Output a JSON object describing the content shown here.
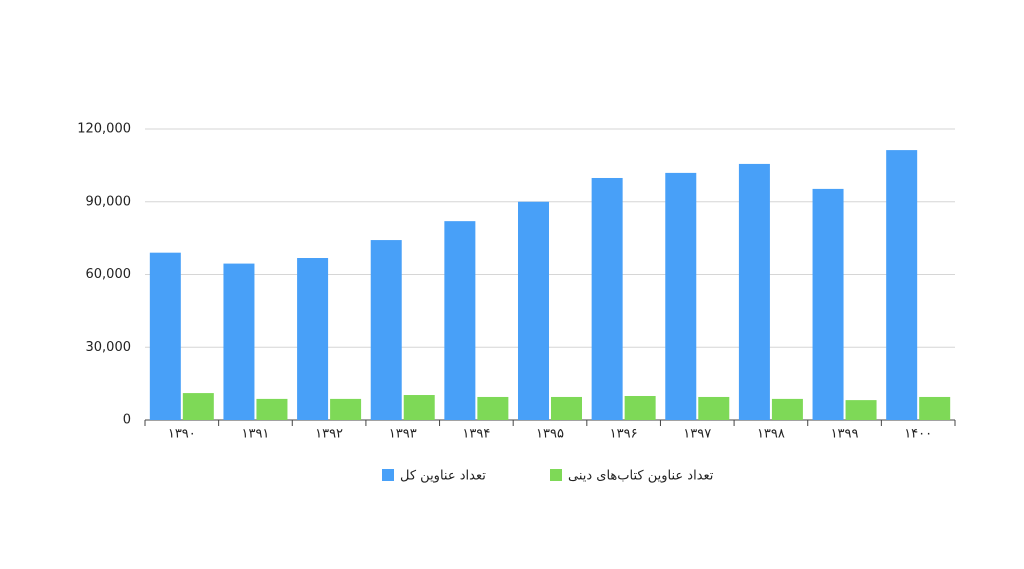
{
  "chart_data": {
    "type": "bar",
    "categories": [
      "۱۳۹۰",
      "۱۳۹۱",
      "۱۳۹۲",
      "۱۳۹۳",
      "۱۳۹۴",
      "۱۳۹۵",
      "۱۳۹۶",
      "۱۳۹۷",
      "۱۳۹۸",
      "۱۳۹۹",
      "۱۴۰۰"
    ],
    "series": [
      {
        "name": "تعداد عناوین کل",
        "color": "#48a0f8",
        "values": [
          69000,
          64500,
          66800,
          74200,
          82000,
          90000,
          99800,
          101900,
          105600,
          95300,
          111300
        ]
      },
      {
        "name": "تعداد عناوین کتاب‌های دینی",
        "color": "#7ed957",
        "values": [
          11100,
          8700,
          8700,
          10300,
          9500,
          9500,
          9900,
          9500,
          8700,
          8200,
          9500
        ]
      }
    ],
    "ylim": [
      0,
      120000
    ],
    "yticks": [
      0,
      {
        "value": 30000,
        "label": "30,000"
      },
      {
        "value": 60000,
        "label": "60,000"
      },
      {
        "value": 90000,
        "label": "90,000"
      },
      {
        "value": 120000,
        "label": "120,000"
      }
    ],
    "grid": true
  }
}
